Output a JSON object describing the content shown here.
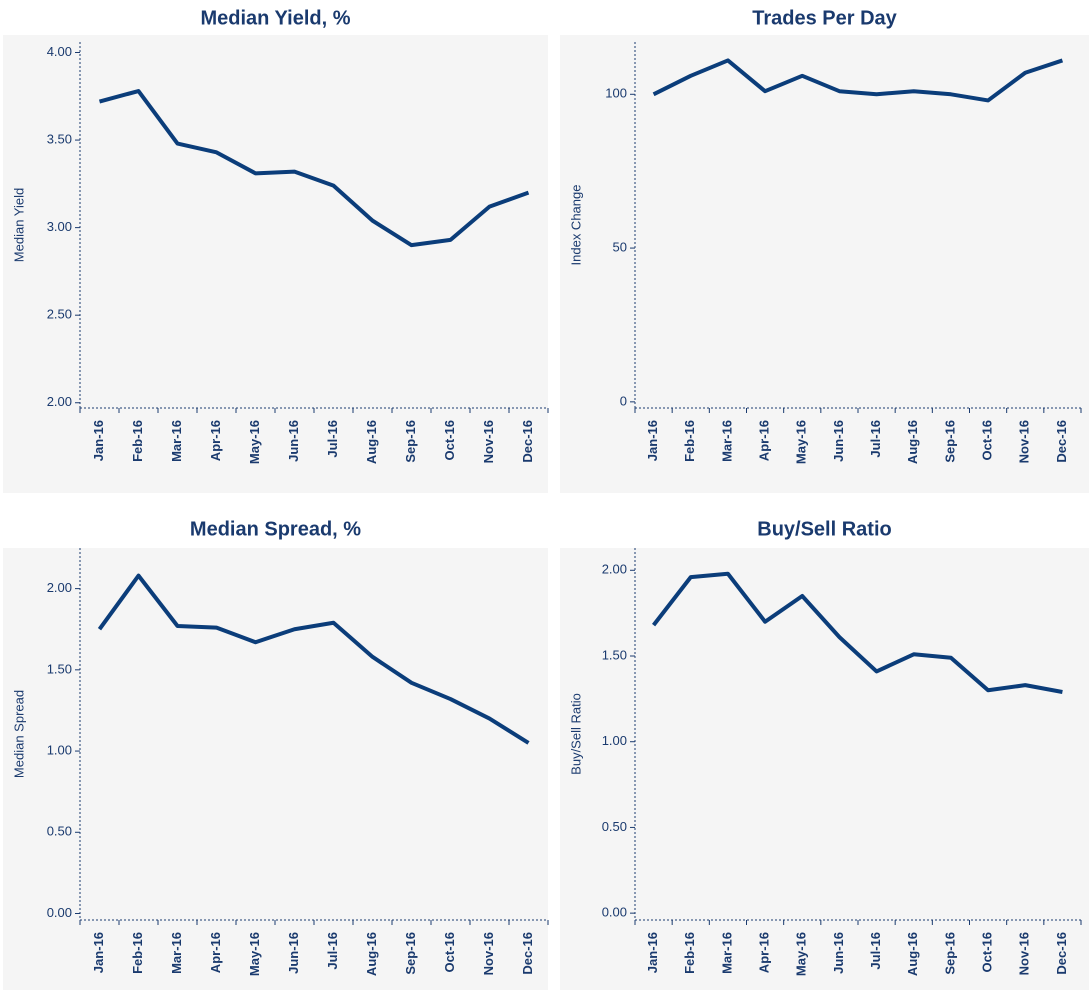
{
  "chart_data": [
    {
      "type": "line",
      "title": "Median Yield, %",
      "y_label": "Median Yield",
      "color": "#0b3d7a",
      "categories": [
        "Jan-16",
        "Feb-16",
        "Mar-16",
        "Apr-16",
        "May-16",
        "Jun-16",
        "Jul-16",
        "Aug-16",
        "Sep-16",
        "Oct-16",
        "Nov-16",
        "Dec-16"
      ],
      "values": [
        3.72,
        3.78,
        3.48,
        3.43,
        3.31,
        3.32,
        3.24,
        3.04,
        2.9,
        2.93,
        3.12,
        3.2
      ],
      "ylim": [
        1.97,
        4.06
      ],
      "yticks": [
        {
          "value": 2,
          "label": "2.00"
        },
        {
          "value": 2.5,
          "label": "2.50"
        },
        {
          "value": 3,
          "label": "3.00"
        },
        {
          "value": 3.5,
          "label": "3.50"
        },
        {
          "value": 4,
          "label": "4.00"
        }
      ]
    },
    {
      "type": "line",
      "title": "Trades Per Day",
      "y_label": "Index Change",
      "color": "#0b3d7a",
      "categories": [
        "Jan-16",
        "Feb-16",
        "Mar-16",
        "Apr-16",
        "May-16",
        "Jun-16",
        "Jul-16",
        "Aug-16",
        "Sep-16",
        "Oct-16",
        "Nov-16",
        "Dec-16"
      ],
      "values": [
        100,
        106,
        111,
        101,
        106,
        101,
        100,
        101,
        100,
        98,
        107,
        111
      ],
      "ylim": [
        -2,
        117
      ],
      "yticks": [
        0,
        50,
        100
      ]
    },
    {
      "type": "line",
      "title": "Median Spread, %",
      "y_label": "Median Spread",
      "color": "#0b3d7a",
      "categories": [
        "Jan-16",
        "Feb-16",
        "Mar-16",
        "Apr-16",
        "May-16",
        "Jun-16",
        "Jul-16",
        "Aug-16",
        "Sep-16",
        "Oct-16",
        "Nov-16",
        "Dec-16"
      ],
      "values": [
        1.75,
        2.08,
        1.77,
        1.76,
        1.67,
        1.75,
        1.79,
        1.58,
        1.42,
        1.32,
        1.2,
        1.05
      ],
      "ylim": [
        -0.04,
        2.25
      ],
      "yticks": [
        {
          "value": 0,
          "label": "0.00"
        },
        {
          "value": 0.5,
          "label": "0.50"
        },
        {
          "value": 1,
          "label": "1.00"
        },
        {
          "value": 1.5,
          "label": "1.50"
        },
        {
          "value": 2,
          "label": "2.00"
        }
      ]
    },
    {
      "type": "line",
      "title": "Buy/Sell Ratio",
      "y_label": "Buy/Sell Ratio",
      "color": "#0b3d7a",
      "categories": [
        "Jan-16",
        "Feb-16",
        "Mar-16",
        "Apr-16",
        "May-16",
        "Jun-16",
        "Jul-16",
        "Aug-16",
        "Sep-16",
        "Oct-16",
        "Nov-16",
        "Dec-16"
      ],
      "values": [
        1.68,
        1.96,
        1.98,
        1.7,
        1.85,
        1.61,
        1.41,
        1.51,
        1.49,
        1.3,
        1.33,
        1.29
      ],
      "ylim": [
        -0.04,
        2.13
      ],
      "yticks": [
        {
          "value": 0,
          "label": "0.00"
        },
        {
          "value": 0.5,
          "label": "0.50"
        },
        {
          "value": 1,
          "label": "1.00"
        },
        {
          "value": 1.5,
          "label": "1.50"
        },
        {
          "value": 2,
          "label": "2.00"
        }
      ]
    }
  ]
}
